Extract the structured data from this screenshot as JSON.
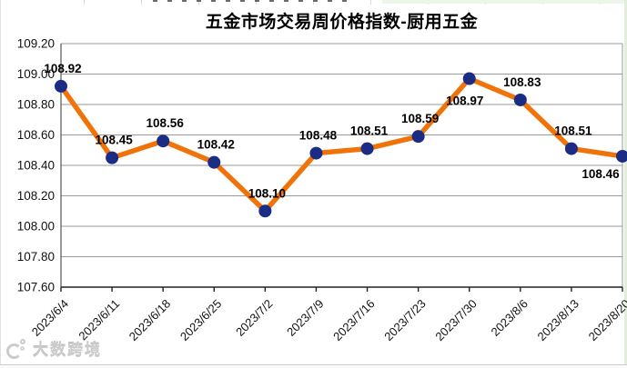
{
  "watermark": {
    "text": "大数跨境"
  },
  "chart_data": {
    "type": "line",
    "title": "五金市场交易周价格指数-厨用五金",
    "x": [
      "2023/6/4",
      "2023/6/11",
      "2023/6/18",
      "2023/6/25",
      "2023/7/2",
      "2023/7/9",
      "2023/7/16",
      "2023/7/23",
      "2023/7/30",
      "2023/8/6",
      "2023/8/13",
      "2023/8/20"
    ],
    "values": [
      108.92,
      108.45,
      108.56,
      108.42,
      108.1,
      108.48,
      108.51,
      108.59,
      108.97,
      108.83,
      108.51,
      108.46
    ],
    "data_labels": [
      "108.92",
      "108.45",
      "108.56",
      "108.42",
      "108.10",
      "108.48",
      "108.51",
      "108.59",
      "108.97",
      "108.83",
      "108.51",
      "108.46"
    ],
    "label_positions": [
      "above",
      "above",
      "above",
      "above",
      "above",
      "above",
      "above",
      "above",
      "below",
      "above",
      "above",
      "below-left"
    ],
    "yticks": [
      "109.20",
      "109.00",
      "108.80",
      "108.60",
      "108.40",
      "108.20",
      "108.00",
      "107.80",
      "107.60"
    ],
    "ylim": [
      107.6,
      109.2
    ],
    "xlabel": "",
    "ylabel": "",
    "grid": true,
    "legend": "none",
    "colors": {
      "line": "#F0730A",
      "marker": "#1B2C85",
      "gridline": "#9a9a9a",
      "plot_border": "#9a9a9a",
      "axis": "#222222",
      "tick_text": "#111111",
      "data_label_text": "#000000",
      "title_text": "#000000"
    }
  }
}
